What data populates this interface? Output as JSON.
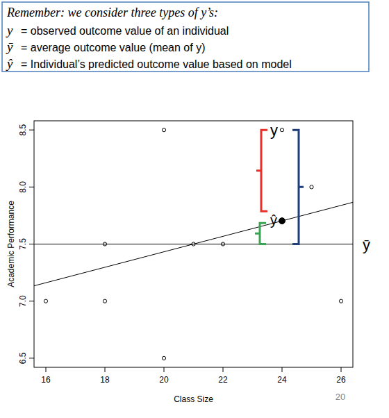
{
  "chart_data": {
    "type": "scatter",
    "x_label": "Class Size",
    "y_label": "Academic Performance",
    "xlim": [
      15.6,
      26.4
    ],
    "ylim": [
      6.42,
      8.58
    ],
    "xticks": [
      16,
      18,
      20,
      22,
      24,
      26
    ],
    "yticks": [
      6.5,
      {
        "value": 7,
        "label": "7.0"
      },
      7.5,
      {
        "value": 8,
        "label": "8.0"
      },
      8.5
    ],
    "grid": false,
    "series": [
      {
        "type": "scatter",
        "marker": "circle",
        "color": "#000000",
        "x": [
          16,
          18,
          18,
          20,
          20,
          21,
          22,
          24,
          25,
          26
        ],
        "values": [
          7.0,
          7.5,
          7.0,
          8.5,
          6.5,
          7.5,
          7.5,
          8.5,
          8.0,
          7.0
        ]
      },
      {
        "type": "line",
        "line_style": "solid",
        "color": "#000000",
        "x": [
          15.6,
          26.4
        ],
        "values": [
          7.134,
          7.866
        ]
      }
    ],
    "reference_line": {
      "value": 7.5,
      "label": "ȳ"
    },
    "point_annotation": {
      "x": 24,
      "y": 8.5,
      "y_label": "y",
      "y_hat": 7.703,
      "y_hat_label": "ŷ"
    }
  },
  "note": {
    "title": "Remember: we consider three types of y’s:",
    "items": [
      {
        "symbol": "y",
        "text": "= observed outcome value of an individual"
      },
      {
        "symbol": "ȳ",
        "text": "= average outcome value (mean of y)"
      },
      {
        "symbol": "ŷ",
        "text": "= Individual’s predicted outcome value based on model"
      }
    ]
  },
  "page_number": "20"
}
